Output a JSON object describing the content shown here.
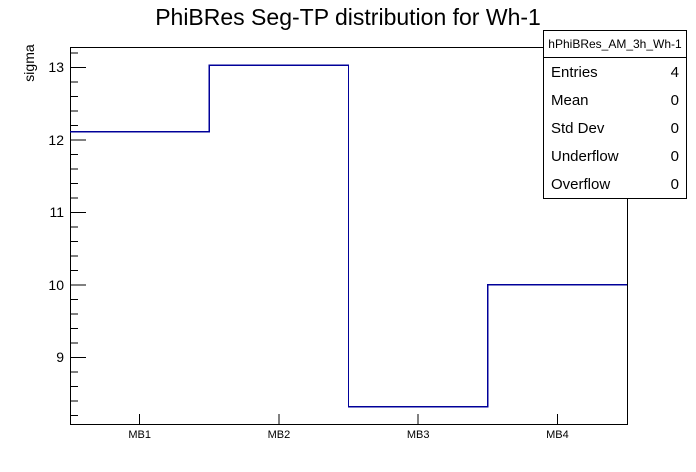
{
  "chart_data": {
    "type": "line",
    "style": "step-histogram-outline (ROOT TH1 HIST)",
    "title": "PhiBRes Seg-TP distribution for Wh-1",
    "xlabel": "",
    "ylabel": "sigma",
    "categories": [
      "MB1",
      "MB2",
      "MB3",
      "MB4"
    ],
    "values": [
      12.11,
      13.03,
      8.32,
      10.0
    ],
    "ylim": [
      8.08,
      13.28
    ],
    "yticks_major": [
      9,
      10,
      11,
      12,
      13
    ],
    "ytick_minor_step": 0.2,
    "grid": false,
    "legend": false,
    "line_color": "#000099",
    "frame_color": "#000000",
    "background_color": "#ffffff"
  },
  "stats_box": {
    "header": "hPhiBRes_AM_3h_Wh-1",
    "rows": [
      {
        "label": "Entries",
        "value": "4"
      },
      {
        "label": "Mean",
        "value": "0"
      },
      {
        "label": "Std Dev",
        "value": "0"
      },
      {
        "label": "Underflow",
        "value": "0"
      },
      {
        "label": "Overflow",
        "value": "0"
      }
    ]
  }
}
